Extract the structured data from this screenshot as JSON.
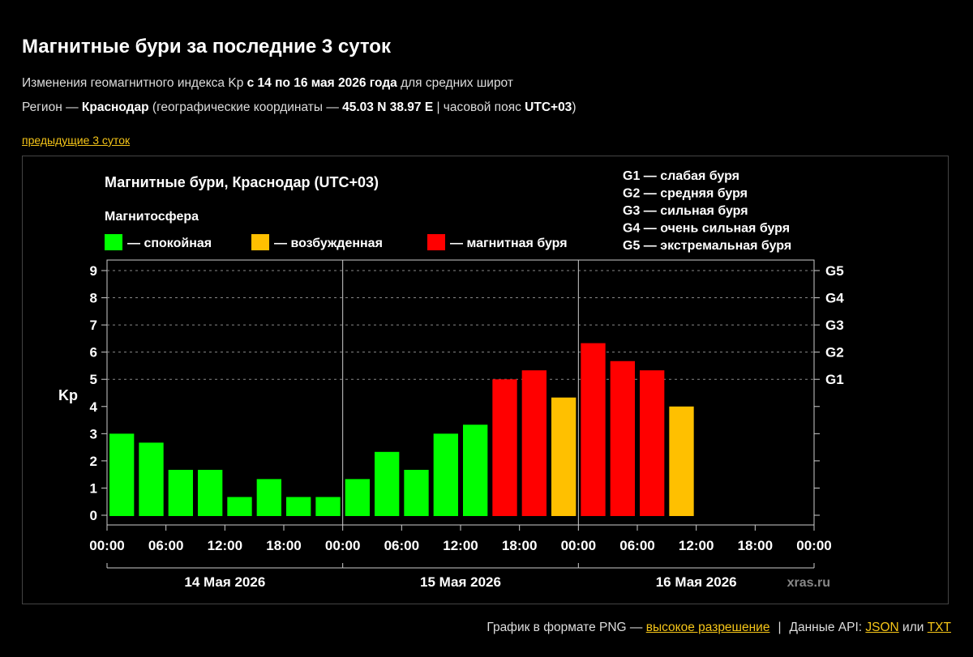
{
  "header": {
    "title": "Магнитные бури за последние 3 суток",
    "line1_pre": "Изменения геомагнитного индекса Kp ",
    "line1_bold": "с 14 по 16 мая 2026 года",
    "line1_post": " для средних широт",
    "line2_pre": "Регион — ",
    "line2_city": "Краснодар",
    "line2_mid": " (географические координаты — ",
    "line2_coords": "45.03 N 38.97 E",
    "line2_mid2": " | часовой пояс ",
    "line2_tz": "UTC+03",
    "line2_post": ")",
    "prev_link": "предыдущие 3 суток"
  },
  "footer": {
    "png_text": "График в формате PNG — ",
    "png_link": "высокое разрешение",
    "separator": "|",
    "api_text": "Данные API: ",
    "json_link": "JSON",
    "or_text": " или ",
    "txt_link": "TXT"
  },
  "chart_data": {
    "type": "bar",
    "title": "Магнитные бури, Краснодар (UTC+03)",
    "ylabel": "Kp",
    "ylim": [
      0,
      9
    ],
    "yticks": [
      "0",
      "1",
      "2",
      "3",
      "4",
      "5",
      "6",
      "7",
      "8",
      "9"
    ],
    "g_scale": [
      {
        "label": "G1",
        "kp": 5
      },
      {
        "label": "G2",
        "kp": 6
      },
      {
        "label": "G3",
        "kp": 7
      },
      {
        "label": "G4",
        "kp": 8
      },
      {
        "label": "G5",
        "kp": 9
      }
    ],
    "magnetosphere_label": "Магнитосфера",
    "legend": [
      {
        "label": "— спокойная",
        "color": "#00ff00"
      },
      {
        "label": "— возбужденная",
        "color": "#ffc000"
      },
      {
        "label": "— магнитная буря",
        "color": "#ff0000"
      }
    ],
    "g_legend": [
      "G1 — слабая буря",
      "G2 — средняя буря",
      "G3 — сильная буря",
      "G4 — очень сильная буря",
      "G5 — экстремальная буря"
    ],
    "xticks": [
      "00:00",
      "06:00",
      "12:00",
      "18:00",
      "00:00",
      "06:00",
      "12:00",
      "18:00",
      "00:00",
      "06:00",
      "12:00",
      "18:00",
      "00:00"
    ],
    "days": [
      "14 Мая 2026",
      "15 Мая 2026",
      "16 Мая 2026"
    ],
    "interval_hours": 3,
    "values": [
      3.0,
      2.67,
      1.67,
      1.67,
      0.67,
      1.33,
      0.67,
      0.67,
      1.33,
      2.33,
      1.67,
      3.0,
      3.33,
      5.0,
      5.33,
      4.33,
      6.33,
      5.67,
      5.33,
      4.0
    ],
    "colors": [
      "#00ff00",
      "#00ff00",
      "#00ff00",
      "#00ff00",
      "#00ff00",
      "#00ff00",
      "#00ff00",
      "#00ff00",
      "#00ff00",
      "#00ff00",
      "#00ff00",
      "#00ff00",
      "#00ff00",
      "#ff0000",
      "#ff0000",
      "#ffc000",
      "#ff0000",
      "#ff0000",
      "#ff0000",
      "#ffc000"
    ],
    "watermark": "xras.ru"
  }
}
